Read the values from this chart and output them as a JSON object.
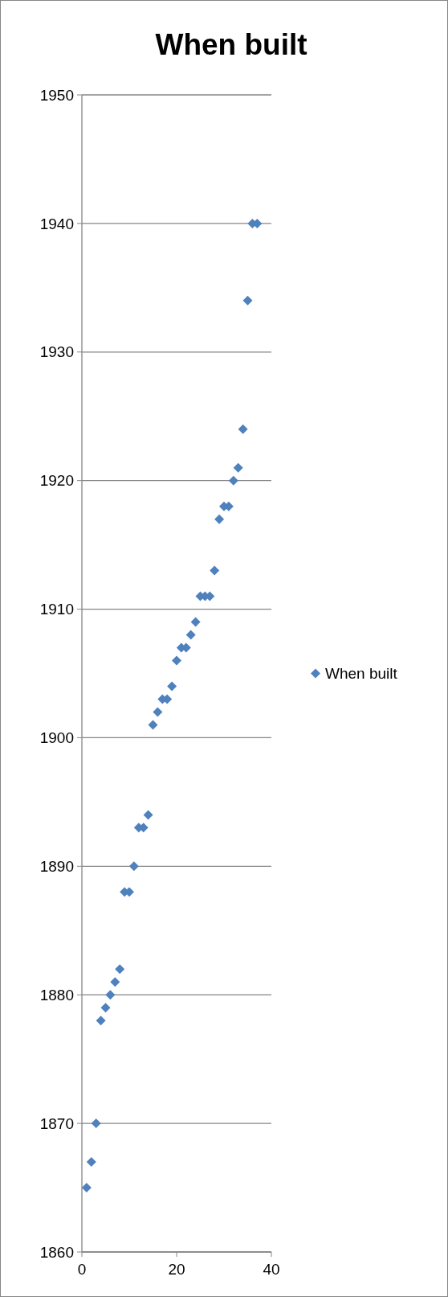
{
  "chart_data": {
    "type": "scatter",
    "title": "When built",
    "x": [
      1,
      2,
      3,
      4,
      5,
      6,
      7,
      8,
      9,
      10,
      11,
      12,
      13,
      14,
      15,
      16,
      17,
      18,
      19,
      20,
      21,
      22,
      23,
      24,
      25,
      26,
      27,
      28,
      29,
      30,
      31,
      32,
      33,
      34,
      35,
      36,
      37
    ],
    "series": [
      {
        "name": "When built",
        "color": "#4f81bd",
        "values": [
          1865,
          1867,
          1870,
          1878,
          1879,
          1880,
          1881,
          1882,
          1888,
          1888,
          1890,
          1893,
          1893,
          1894,
          1901,
          1902,
          1903,
          1903,
          1904,
          1906,
          1907,
          1907,
          1908,
          1909,
          1911,
          1911,
          1911,
          1913,
          1917,
          1918,
          1918,
          1920,
          1921,
          1924,
          1934,
          1940,
          1940
        ]
      }
    ],
    "xlim": [
      0,
      40
    ],
    "xticks": [
      0,
      20,
      40
    ],
    "ylim": [
      1860,
      1950
    ],
    "yticks": [
      1860,
      1870,
      1880,
      1890,
      1900,
      1910,
      1920,
      1930,
      1940,
      1950
    ],
    "grid": "y",
    "legend": "right",
    "marker": "diamond"
  }
}
